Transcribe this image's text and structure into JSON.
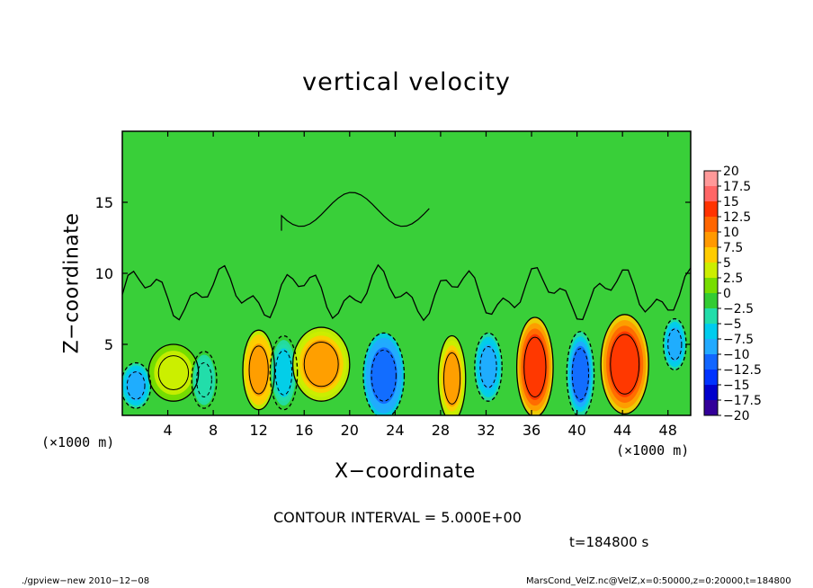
{
  "chart_data": {
    "type": "heatmap",
    "title": "vertical velocity",
    "xlabel": "X−coordinate",
    "ylabel": "Z−coordinate",
    "x_unit": "(×1000 m)",
    "y_unit": "(×1000 m)",
    "xlim": [
      0,
      50
    ],
    "ylim": [
      0,
      20
    ],
    "x_ticks": [
      4,
      8,
      12,
      16,
      20,
      24,
      28,
      32,
      36,
      40,
      44,
      48
    ],
    "y_ticks": [
      5,
      10,
      15
    ],
    "grid": false,
    "contour_interval": "CONTOUR INTERVAL = 5.000E+00",
    "time_label": "t=184800 s",
    "colorbar": {
      "levels": [
        20,
        17.5,
        15,
        12.5,
        10,
        7.5,
        5,
        2.5,
        0,
        -2.5,
        -5,
        -7.5,
        -10,
        -12.5,
        -15,
        -17.5,
        -20
      ],
      "labels": [
        "20",
        "17.5",
        "15",
        "12.5",
        "10",
        "7.5",
        "5",
        "2.5",
        "0",
        "−2.5",
        "−5",
        "−7.5",
        "−10",
        "−12.5",
        "−15",
        "−17.5",
        "−20"
      ],
      "colors": [
        "#ff9999",
        "#ff6666",
        "#ff3300",
        "#ff6600",
        "#ff9900",
        "#ffcc00",
        "#ccee00",
        "#77dd00",
        "#33cc33",
        "#22ddaa",
        "#00ccee",
        "#22aaff",
        "#1166ff",
        "#0033ff",
        "#0000cc",
        "#330099",
        "#6600aa"
      ]
    },
    "cells": [
      {
        "x": 1.2,
        "z": 2.1,
        "value": -8,
        "w": 1.3,
        "h": 1.6
      },
      {
        "x": 4.5,
        "z": 3.0,
        "value": 4,
        "w": 2.2,
        "h": 2.0
      },
      {
        "x": 7.2,
        "z": 2.5,
        "value": -4,
        "w": 1.1,
        "h": 2.0
      },
      {
        "x": 12.0,
        "z": 3.2,
        "value": 9,
        "w": 1.4,
        "h": 2.8
      },
      {
        "x": 14.2,
        "z": 3.0,
        "value": -5,
        "w": 1.2,
        "h": 2.6
      },
      {
        "x": 17.5,
        "z": 3.6,
        "value": 8,
        "w": 2.5,
        "h": 2.6
      },
      {
        "x": 23.0,
        "z": 2.8,
        "value": -12,
        "w": 1.8,
        "h": 3.0
      },
      {
        "x": 29.0,
        "z": 2.6,
        "value": 8,
        "w": 1.2,
        "h": 3.0
      },
      {
        "x": 32.2,
        "z": 3.4,
        "value": -9,
        "w": 1.2,
        "h": 2.4
      },
      {
        "x": 36.3,
        "z": 3.4,
        "value": 13,
        "w": 1.6,
        "h": 3.5
      },
      {
        "x": 40.3,
        "z": 2.9,
        "value": -10,
        "w": 1.2,
        "h": 3.0
      },
      {
        "x": 44.2,
        "z": 3.6,
        "value": 13,
        "w": 2.1,
        "h": 3.5
      },
      {
        "x": 48.6,
        "z": 5.0,
        "value": -8,
        "w": 1.0,
        "h": 1.8
      }
    ]
  },
  "footer": {
    "left": "./gpview−new   2010−12−08",
    "right": "MarsCond_VelZ.nc@VelZ,x=0:50000,z=0:20000,t=184800"
  }
}
